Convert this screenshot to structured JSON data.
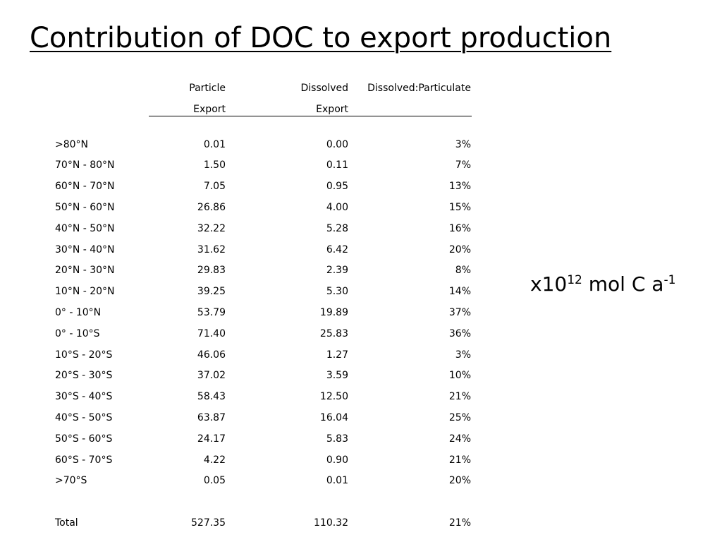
{
  "title": "Contribution of DOC to export production",
  "units": {
    "prefix": "x10",
    "exp1": "12",
    "mid": " mol C a",
    "exp2": "-1"
  },
  "table": {
    "header_line1": [
      "",
      "Particle",
      "Dissolved",
      "Dissolved:Particulate"
    ],
    "header_line2": [
      "",
      "Export",
      "Export",
      ""
    ],
    "rows": [
      [
        ">80°N",
        "0.01",
        "0.00",
        "3%"
      ],
      [
        "70°N - 80°N",
        "1.50",
        "0.11",
        "7%"
      ],
      [
        "60°N - 70°N",
        "7.05",
        "0.95",
        "13%"
      ],
      [
        "50°N - 60°N",
        "26.86",
        "4.00",
        "15%"
      ],
      [
        "40°N - 50°N",
        "32.22",
        "5.28",
        "16%"
      ],
      [
        "30°N - 40°N",
        "31.62",
        "6.42",
        "20%"
      ],
      [
        "20°N - 30°N",
        "29.83",
        "2.39",
        "8%"
      ],
      [
        "10°N - 20°N",
        "39.25",
        "5.30",
        "14%"
      ],
      [
        "0° - 10°N",
        "53.79",
        "19.89",
        "37%"
      ],
      [
        "0° - 10°S",
        "71.40",
        "25.83",
        "36%"
      ],
      [
        "10°S - 20°S",
        "46.06",
        "1.27",
        "3%"
      ],
      [
        "20°S - 30°S",
        "37.02",
        "3.59",
        "10%"
      ],
      [
        "30°S - 40°S",
        "58.43",
        "12.50",
        "21%"
      ],
      [
        "40°S - 50°S",
        "63.87",
        "16.04",
        "25%"
      ],
      [
        "50°S - 60°S",
        "24.17",
        "5.83",
        "24%"
      ],
      [
        "60°S - 70°S",
        "4.22",
        "0.90",
        "21%"
      ],
      [
        ">70°S",
        "0.05",
        "0.01",
        "20%"
      ]
    ],
    "total": [
      "Total",
      "527.35",
      "110.32",
      "21%"
    ]
  }
}
